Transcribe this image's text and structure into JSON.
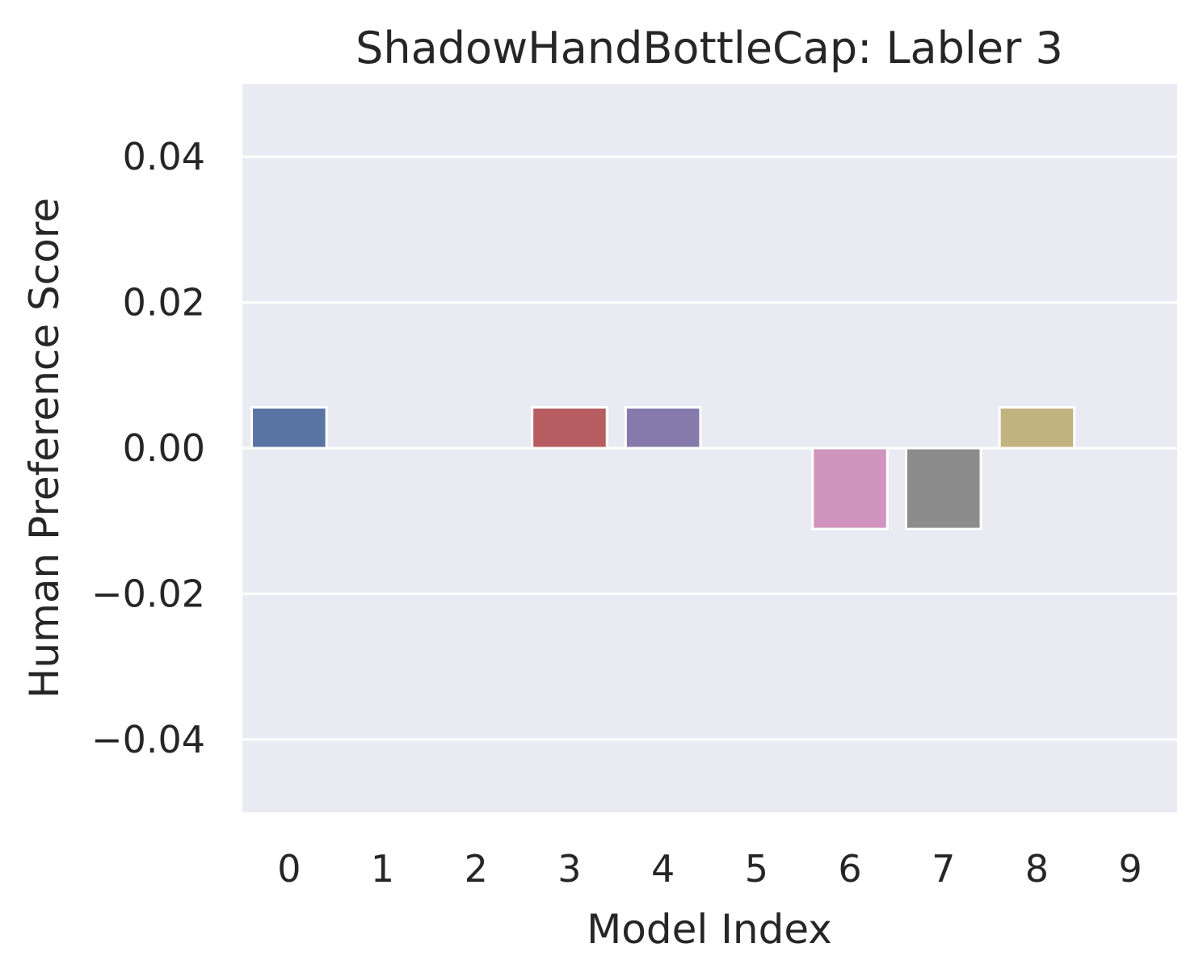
{
  "chart_data": {
    "type": "bar",
    "title": "ShadowHandBottleCap: Labler 3",
    "xlabel": "Model Index",
    "ylabel": "Human Preference Score",
    "categories": [
      "0",
      "1",
      "2",
      "3",
      "4",
      "5",
      "6",
      "7",
      "8",
      "9"
    ],
    "values": [
      0.0056,
      0.0,
      0.0,
      0.0056,
      0.0056,
      0.0,
      -0.0111,
      -0.0111,
      0.0056,
      0.0
    ],
    "colors": [
      "#5975a4",
      "#cc8963",
      "#5f9e6e",
      "#b55d60",
      "#857aab",
      "#8d7866",
      "#d095bf",
      "#8c8c8c",
      "#c1b37f",
      "#82c6e2"
    ],
    "ylim": [
      -0.05,
      0.05
    ],
    "yticks": [
      -0.04,
      -0.02,
      0.0,
      0.02,
      0.04
    ],
    "ytick_labels": [
      "−0.04",
      "−0.02",
      "0.00",
      "0.02",
      "0.04"
    ],
    "background_color": "#eaeaf2",
    "grid": true,
    "legend": "none"
  }
}
